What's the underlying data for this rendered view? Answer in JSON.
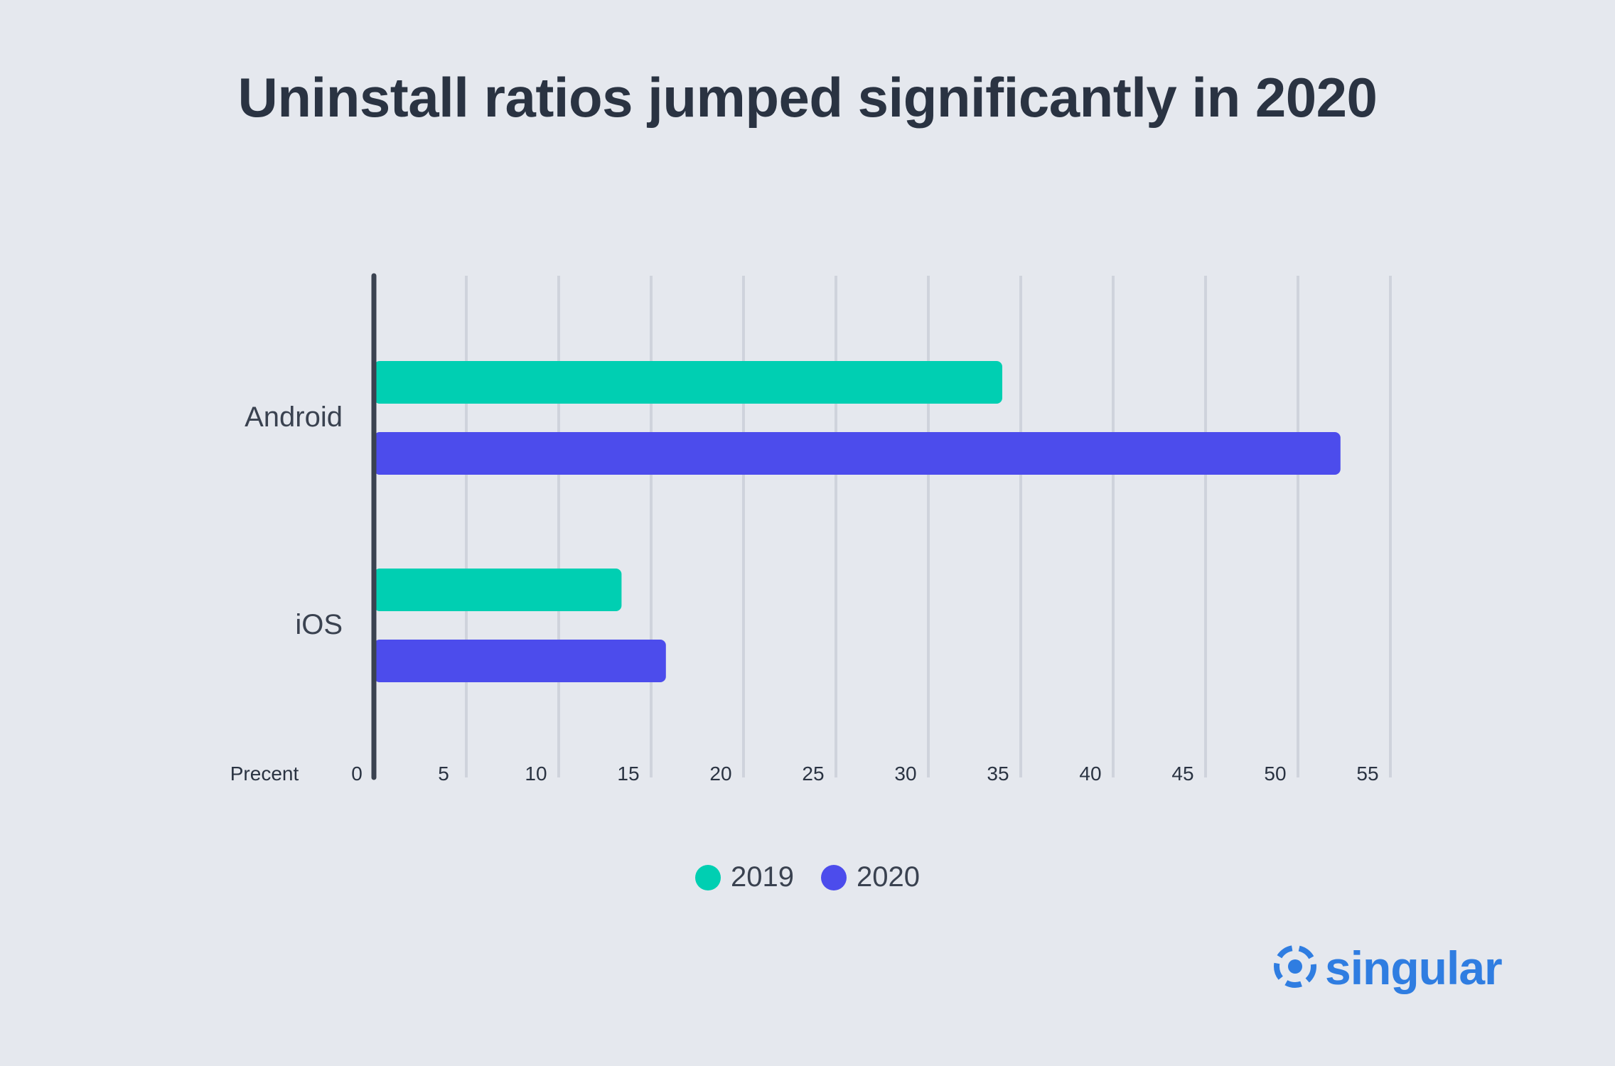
{
  "chart_data": {
    "type": "bar",
    "orientation": "horizontal",
    "title": "Uninstall ratios jumped significantly in 2020",
    "xlabel": "Precent",
    "categories": [
      "Android",
      "iOS"
    ],
    "series": [
      {
        "name": "2019",
        "values": [
          34,
          13.4
        ],
        "color": "#00cfb2"
      },
      {
        "name": "2020",
        "values": [
          52.3,
          15.8
        ],
        "color": "#4c4cec"
      }
    ],
    "xlim": [
      0,
      55
    ],
    "xticks": [
      "0",
      "5",
      "10",
      "15",
      "20",
      "25",
      "30",
      "35",
      "40",
      "45",
      "50",
      "55"
    ],
    "grid": true,
    "legend_position": "bottom-center"
  },
  "colors": {
    "background": "#e5e8ee",
    "axis": "#3a4250",
    "gridline": "#cfd3dc",
    "brand": "#2f7de1"
  },
  "logo": {
    "text": "singular",
    "icon": "singular-logo-icon"
  }
}
